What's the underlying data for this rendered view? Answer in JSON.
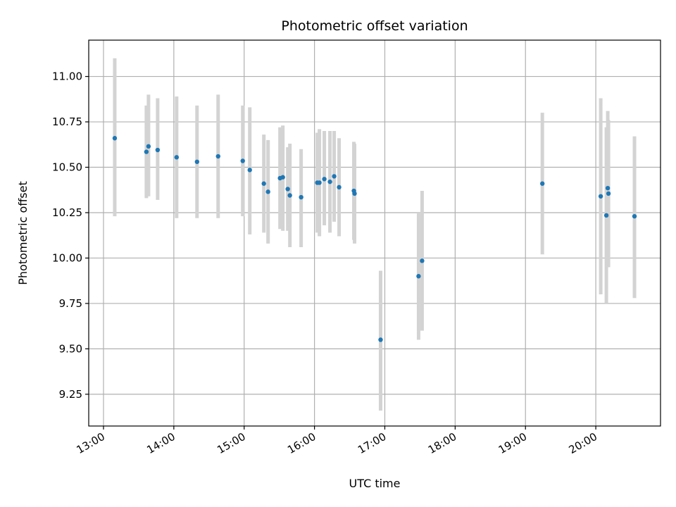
{
  "chart_data": {
    "type": "scatter",
    "title": "Photometric offset variation",
    "xlabel": "UTC time",
    "ylabel": "Photometric offset",
    "grid": true,
    "xlim_hours": [
      12.79,
      20.92
    ],
    "ylim": [
      9.075,
      11.2
    ],
    "x_ticks": [
      {
        "hour": 13,
        "label": "13:00"
      },
      {
        "hour": 14,
        "label": "14:00"
      },
      {
        "hour": 15,
        "label": "15:00"
      },
      {
        "hour": 16,
        "label": "16:00"
      },
      {
        "hour": 17,
        "label": "17:00"
      },
      {
        "hour": 18,
        "label": "18:00"
      },
      {
        "hour": 19,
        "label": "19:00"
      },
      {
        "hour": 20,
        "label": "20:00"
      }
    ],
    "y_ticks": [
      {
        "value": 9.25,
        "label": "9.25"
      },
      {
        "value": 9.5,
        "label": "9.50"
      },
      {
        "value": 9.75,
        "label": "9.75"
      },
      {
        "value": 10.0,
        "label": "10.00"
      },
      {
        "value": 10.25,
        "label": "10.25"
      },
      {
        "value": 10.5,
        "label": "10.50"
      },
      {
        "value": 10.75,
        "label": "10.75"
      },
      {
        "value": 11.0,
        "label": "11.00"
      }
    ],
    "marker_color": "#1f77b4",
    "errorbar_color": "#d3d3d3",
    "points": [
      {
        "x": 13.16,
        "y": 10.66,
        "lo": 10.23,
        "hi": 11.1
      },
      {
        "x": 13.61,
        "y": 10.585,
        "lo": 10.33,
        "hi": 10.84
      },
      {
        "x": 13.64,
        "y": 10.615,
        "lo": 10.34,
        "hi": 10.9
      },
      {
        "x": 13.77,
        "y": 10.595,
        "lo": 10.32,
        "hi": 10.88
      },
      {
        "x": 14.04,
        "y": 10.555,
        "lo": 10.22,
        "hi": 10.89
      },
      {
        "x": 14.33,
        "y": 10.53,
        "lo": 10.22,
        "hi": 10.84
      },
      {
        "x": 14.63,
        "y": 10.56,
        "lo": 10.22,
        "hi": 10.9
      },
      {
        "x": 14.98,
        "y": 10.535,
        "lo": 10.23,
        "hi": 10.84
      },
      {
        "x": 15.08,
        "y": 10.485,
        "lo": 10.13,
        "hi": 10.83
      },
      {
        "x": 15.28,
        "y": 10.41,
        "lo": 10.14,
        "hi": 10.68
      },
      {
        "x": 15.34,
        "y": 10.365,
        "lo": 10.08,
        "hi": 10.65
      },
      {
        "x": 15.51,
        "y": 10.44,
        "lo": 10.16,
        "hi": 10.72
      },
      {
        "x": 15.55,
        "y": 10.445,
        "lo": 10.15,
        "hi": 10.73
      },
      {
        "x": 15.62,
        "y": 10.38,
        "lo": 10.15,
        "hi": 10.61
      },
      {
        "x": 15.65,
        "y": 10.345,
        "lo": 10.06,
        "hi": 10.63
      },
      {
        "x": 15.81,
        "y": 10.335,
        "lo": 10.06,
        "hi": 10.6
      },
      {
        "x": 16.04,
        "y": 10.415,
        "lo": 10.14,
        "hi": 10.69
      },
      {
        "x": 16.07,
        "y": 10.415,
        "lo": 10.12,
        "hi": 10.71
      },
      {
        "x": 16.14,
        "y": 10.435,
        "lo": 10.18,
        "hi": 10.7
      },
      {
        "x": 16.22,
        "y": 10.42,
        "lo": 10.14,
        "hi": 10.7
      },
      {
        "x": 16.28,
        "y": 10.45,
        "lo": 10.2,
        "hi": 10.7
      },
      {
        "x": 16.35,
        "y": 10.39,
        "lo": 10.12,
        "hi": 10.66
      },
      {
        "x": 16.56,
        "y": 10.37,
        "lo": 10.1,
        "hi": 10.64
      },
      {
        "x": 16.57,
        "y": 10.355,
        "lo": 10.08,
        "hi": 10.63
      },
      {
        "x": 16.94,
        "y": 9.55,
        "lo": 9.16,
        "hi": 9.93
      },
      {
        "x": 17.48,
        "y": 9.9,
        "lo": 9.55,
        "hi": 10.25
      },
      {
        "x": 17.53,
        "y": 9.985,
        "lo": 9.6,
        "hi": 10.37
      },
      {
        "x": 19.24,
        "y": 10.41,
        "lo": 10.02,
        "hi": 10.8
      },
      {
        "x": 20.07,
        "y": 10.34,
        "lo": 9.8,
        "hi": 10.88
      },
      {
        "x": 20.15,
        "y": 10.235,
        "lo": 9.75,
        "hi": 10.72
      },
      {
        "x": 20.17,
        "y": 10.385,
        "lo": 9.95,
        "hi": 10.81
      },
      {
        "x": 20.18,
        "y": 10.355,
        "lo": 9.95,
        "hi": 10.76
      },
      {
        "x": 20.55,
        "y": 10.23,
        "lo": 9.78,
        "hi": 10.67
      }
    ]
  }
}
